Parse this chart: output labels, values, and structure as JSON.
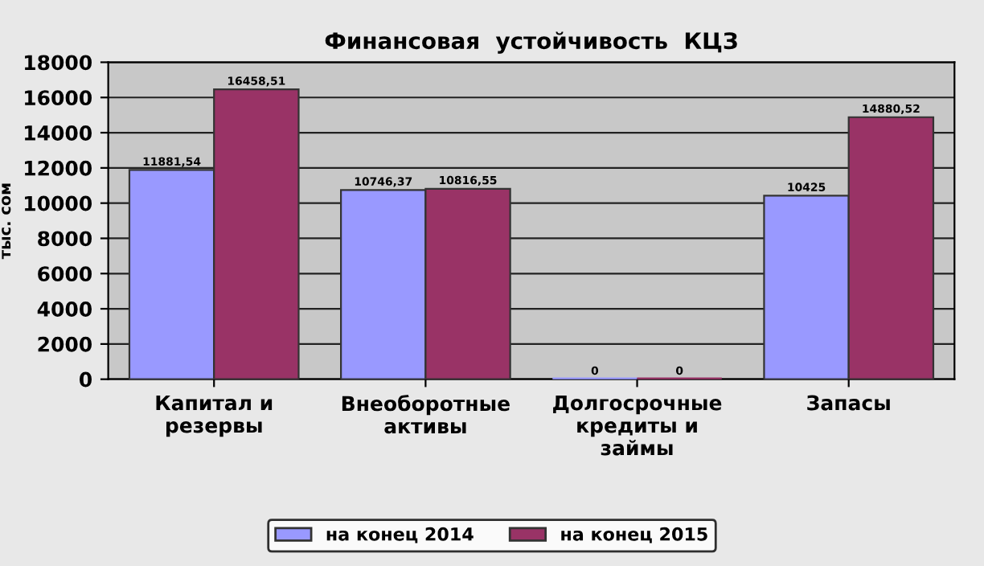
{
  "chart_data": {
    "type": "bar",
    "title": "Финансовая  устойчивость  КЦЗ",
    "ylabel": "тыс. сом",
    "categories": [
      "Капитал и\nрезервы",
      "Внеоборотные\nактивы",
      "Долгосрочные\nкредиты и\nзаймы",
      "Запасы"
    ],
    "series": [
      {
        "name": "на конец 2014",
        "color": "#9999ff",
        "values": [
          11881.54,
          10746.37,
          0,
          10425
        ],
        "value_labels": [
          "11881,54",
          "10746,37",
          "0",
          "10425"
        ]
      },
      {
        "name": "на конец 2015",
        "color": "#993366",
        "values": [
          16458.51,
          10816.55,
          0,
          14880.52
        ],
        "value_labels": [
          "16458,51",
          "10816,55",
          "0",
          "14880,52"
        ]
      }
    ],
    "ylim": [
      0,
      18000
    ],
    "yticks": [
      0,
      2000,
      4000,
      6000,
      8000,
      10000,
      12000,
      14000,
      16000,
      18000
    ],
    "grid": "y",
    "legend": "bottom"
  }
}
